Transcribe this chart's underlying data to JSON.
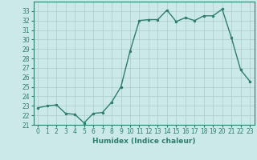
{
  "x": [
    0,
    1,
    2,
    3,
    4,
    5,
    6,
    7,
    8,
    9,
    10,
    11,
    12,
    13,
    14,
    15,
    16,
    17,
    18,
    19,
    20,
    21,
    22,
    23
  ],
  "y": [
    22.8,
    23.0,
    23.1,
    22.2,
    22.1,
    21.2,
    22.2,
    22.3,
    23.4,
    25.0,
    28.8,
    32.0,
    32.1,
    32.1,
    33.1,
    31.9,
    32.3,
    32.0,
    32.5,
    32.5,
    33.2,
    30.2,
    26.8,
    25.6
  ],
  "line_color": "#2e7d6e",
  "marker": ".",
  "markersize": 3,
  "linewidth": 1.0,
  "bg_color": "#cce9e9",
  "grid_color": "#aacccc",
  "xlabel": "Humidex (Indice chaleur)",
  "ylim": [
    21,
    34
  ],
  "xlim": [
    -0.5,
    23.5
  ],
  "yticks": [
    21,
    22,
    23,
    24,
    25,
    26,
    27,
    28,
    29,
    30,
    31,
    32,
    33
  ],
  "xticks": [
    0,
    1,
    2,
    3,
    4,
    5,
    6,
    7,
    8,
    9,
    10,
    11,
    12,
    13,
    14,
    15,
    16,
    17,
    18,
    19,
    20,
    21,
    22,
    23
  ],
  "xlabel_fontsize": 6.5,
  "tick_fontsize": 5.5,
  "axis_color": "#2e7d6e"
}
